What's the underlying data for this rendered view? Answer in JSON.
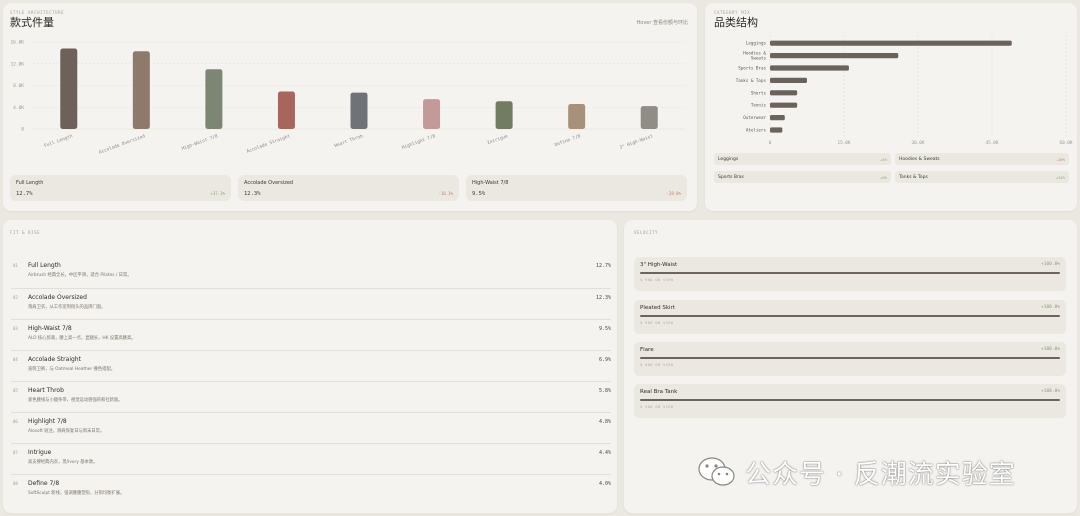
{
  "style_card": {
    "eyebrow": "STYLE ARCHITECTURE",
    "title": "款式件量",
    "hint": "Hover 查看份额与环比",
    "stats": [
      {
        "name": "Full Length",
        "pct": "12.7%",
        "delta": "+37.3%",
        "dir": "pos"
      },
      {
        "name": "Accolade Oversized",
        "pct": "12.3%",
        "delta": "-16.1%",
        "dir": "neg"
      },
      {
        "name": "High-Waist 7/8",
        "pct": "9.5%",
        "delta": "-28.0%",
        "dir": "neg"
      }
    ]
  },
  "chart_data": [
    {
      "type": "bar",
      "title": "款式件量",
      "categories": [
        "Full Length",
        "Accolade Oversized",
        "High-Waist 7/8",
        "Accolade Straight",
        "Heart Throb",
        "Highlight 7/8",
        "Intrigue",
        "Define 7/8",
        "3\" High-Waist"
      ],
      "values": [
        14.8,
        14.3,
        11.0,
        6.9,
        6.7,
        5.5,
        5.1,
        4.6,
        4.2
      ],
      "colors": [
        "#6d6259",
        "#8d7a6d",
        "#7d8674",
        "#a8655d",
        "#6f7378",
        "#c29a98",
        "#727c63",
        "#a8917a",
        "#908c86"
      ],
      "y_ticks": [
        "0",
        "4.0K",
        "8.0K",
        "12.0K",
        "16.0K"
      ],
      "ylim": [
        0,
        16
      ],
      "grid": true
    },
    {
      "type": "bar",
      "orientation": "horizontal",
      "title": "品类结构",
      "categories": [
        "Leggings",
        "Hoodies & Sweats",
        "Sports Bras",
        "Tanks & Tops",
        "Shorts",
        "Tennis",
        "Outerwear",
        "Ateliers"
      ],
      "values": [
        49.0,
        26.0,
        16.0,
        7.5,
        5.5,
        5.5,
        3.0,
        2.5
      ],
      "x_ticks": [
        "0",
        "15.0K",
        "30.0K",
        "45.0K",
        "60.0K"
      ],
      "xlim": [
        0,
        60
      ],
      "grid": true
    }
  ],
  "category_card": {
    "eyebrow": "CATEGORY MIX",
    "title": "品类结构",
    "chips": [
      {
        "name": "Leggings",
        "delta": "+5%",
        "dir": "pos"
      },
      {
        "name": "Hoodies & Sweats",
        "delta": "-26%",
        "dir": "neg"
      },
      {
        "name": "Sports Bras",
        "delta": "+9%",
        "dir": "pos"
      },
      {
        "name": "Tanks & Tops",
        "delta": "+34%",
        "dir": "pos"
      }
    ]
  },
  "fit_card": {
    "eyebrow": "FIT & RISE",
    "rows": [
      {
        "rank": "01",
        "name": "Full Length",
        "desc": "Airbrush 经典全长，中区平滑，适合 Pilates / 日常。",
        "pct": "12.7%"
      },
      {
        "rank": "02",
        "name": "Accolade Oversized",
        "desc": "落肩卫衣，从工作室到街头的品牌门面。",
        "pct": "12.3%"
      },
      {
        "rank": "03",
        "name": "High-Waist 7/8",
        "desc": "ALO 核心剪裁，腰上高一点，显腿长，HK 设置高腰高。",
        "pct": "9.5%"
      },
      {
        "rank": "04",
        "name": "Accolade Straight",
        "desc": "直筒卫裤，与 Oatmeal Heather 撞色搭配。",
        "pct": "6.9%"
      },
      {
        "rank": "05",
        "name": "Heart Throb",
        "desc": "爱色腰线与小腿条带，视觉运动感强的和社新面。",
        "pct": "5.8%"
      },
      {
        "rank": "06",
        "name": "Highlight 7/8",
        "desc": "Alosoft 短注，滑肩恢复日与周末日常。",
        "pct": "4.8%"
      },
      {
        "rank": "07",
        "name": "Intrigue",
        "desc": "高支撑经典内衣，黑/Ivory 基本款。",
        "pct": "4.4%"
      },
      {
        "rank": "08",
        "name": "Define 7/8",
        "desc": "SoftSculpt 新线，强调腰腹塑形，分销均衡扩展。",
        "pct": "4.0%"
      }
    ]
  },
  "velocity_card": {
    "eyebrow": "VELOCITY",
    "items": [
      {
        "name": "3\" High-Waist",
        "delta": "+100.0%",
        "progress": 1.0,
        "sub": "$ 90D ON VIEW"
      },
      {
        "name": "Pleated Skirt",
        "delta": "+100.0%",
        "progress": 1.0,
        "sub": "$ 90D ON VIEW"
      },
      {
        "name": "Flare",
        "delta": "+100.0%",
        "progress": 1.0,
        "sub": "$ 90D ON VIEW"
      },
      {
        "name": "Real Bra Tank",
        "delta": "+100.0%",
        "progress": 1.0,
        "sub": "$ 90D ON VIEW"
      }
    ]
  },
  "watermark": {
    "text": "公众号 · 反潮流实验室",
    "icon": "wechat-icon"
  }
}
